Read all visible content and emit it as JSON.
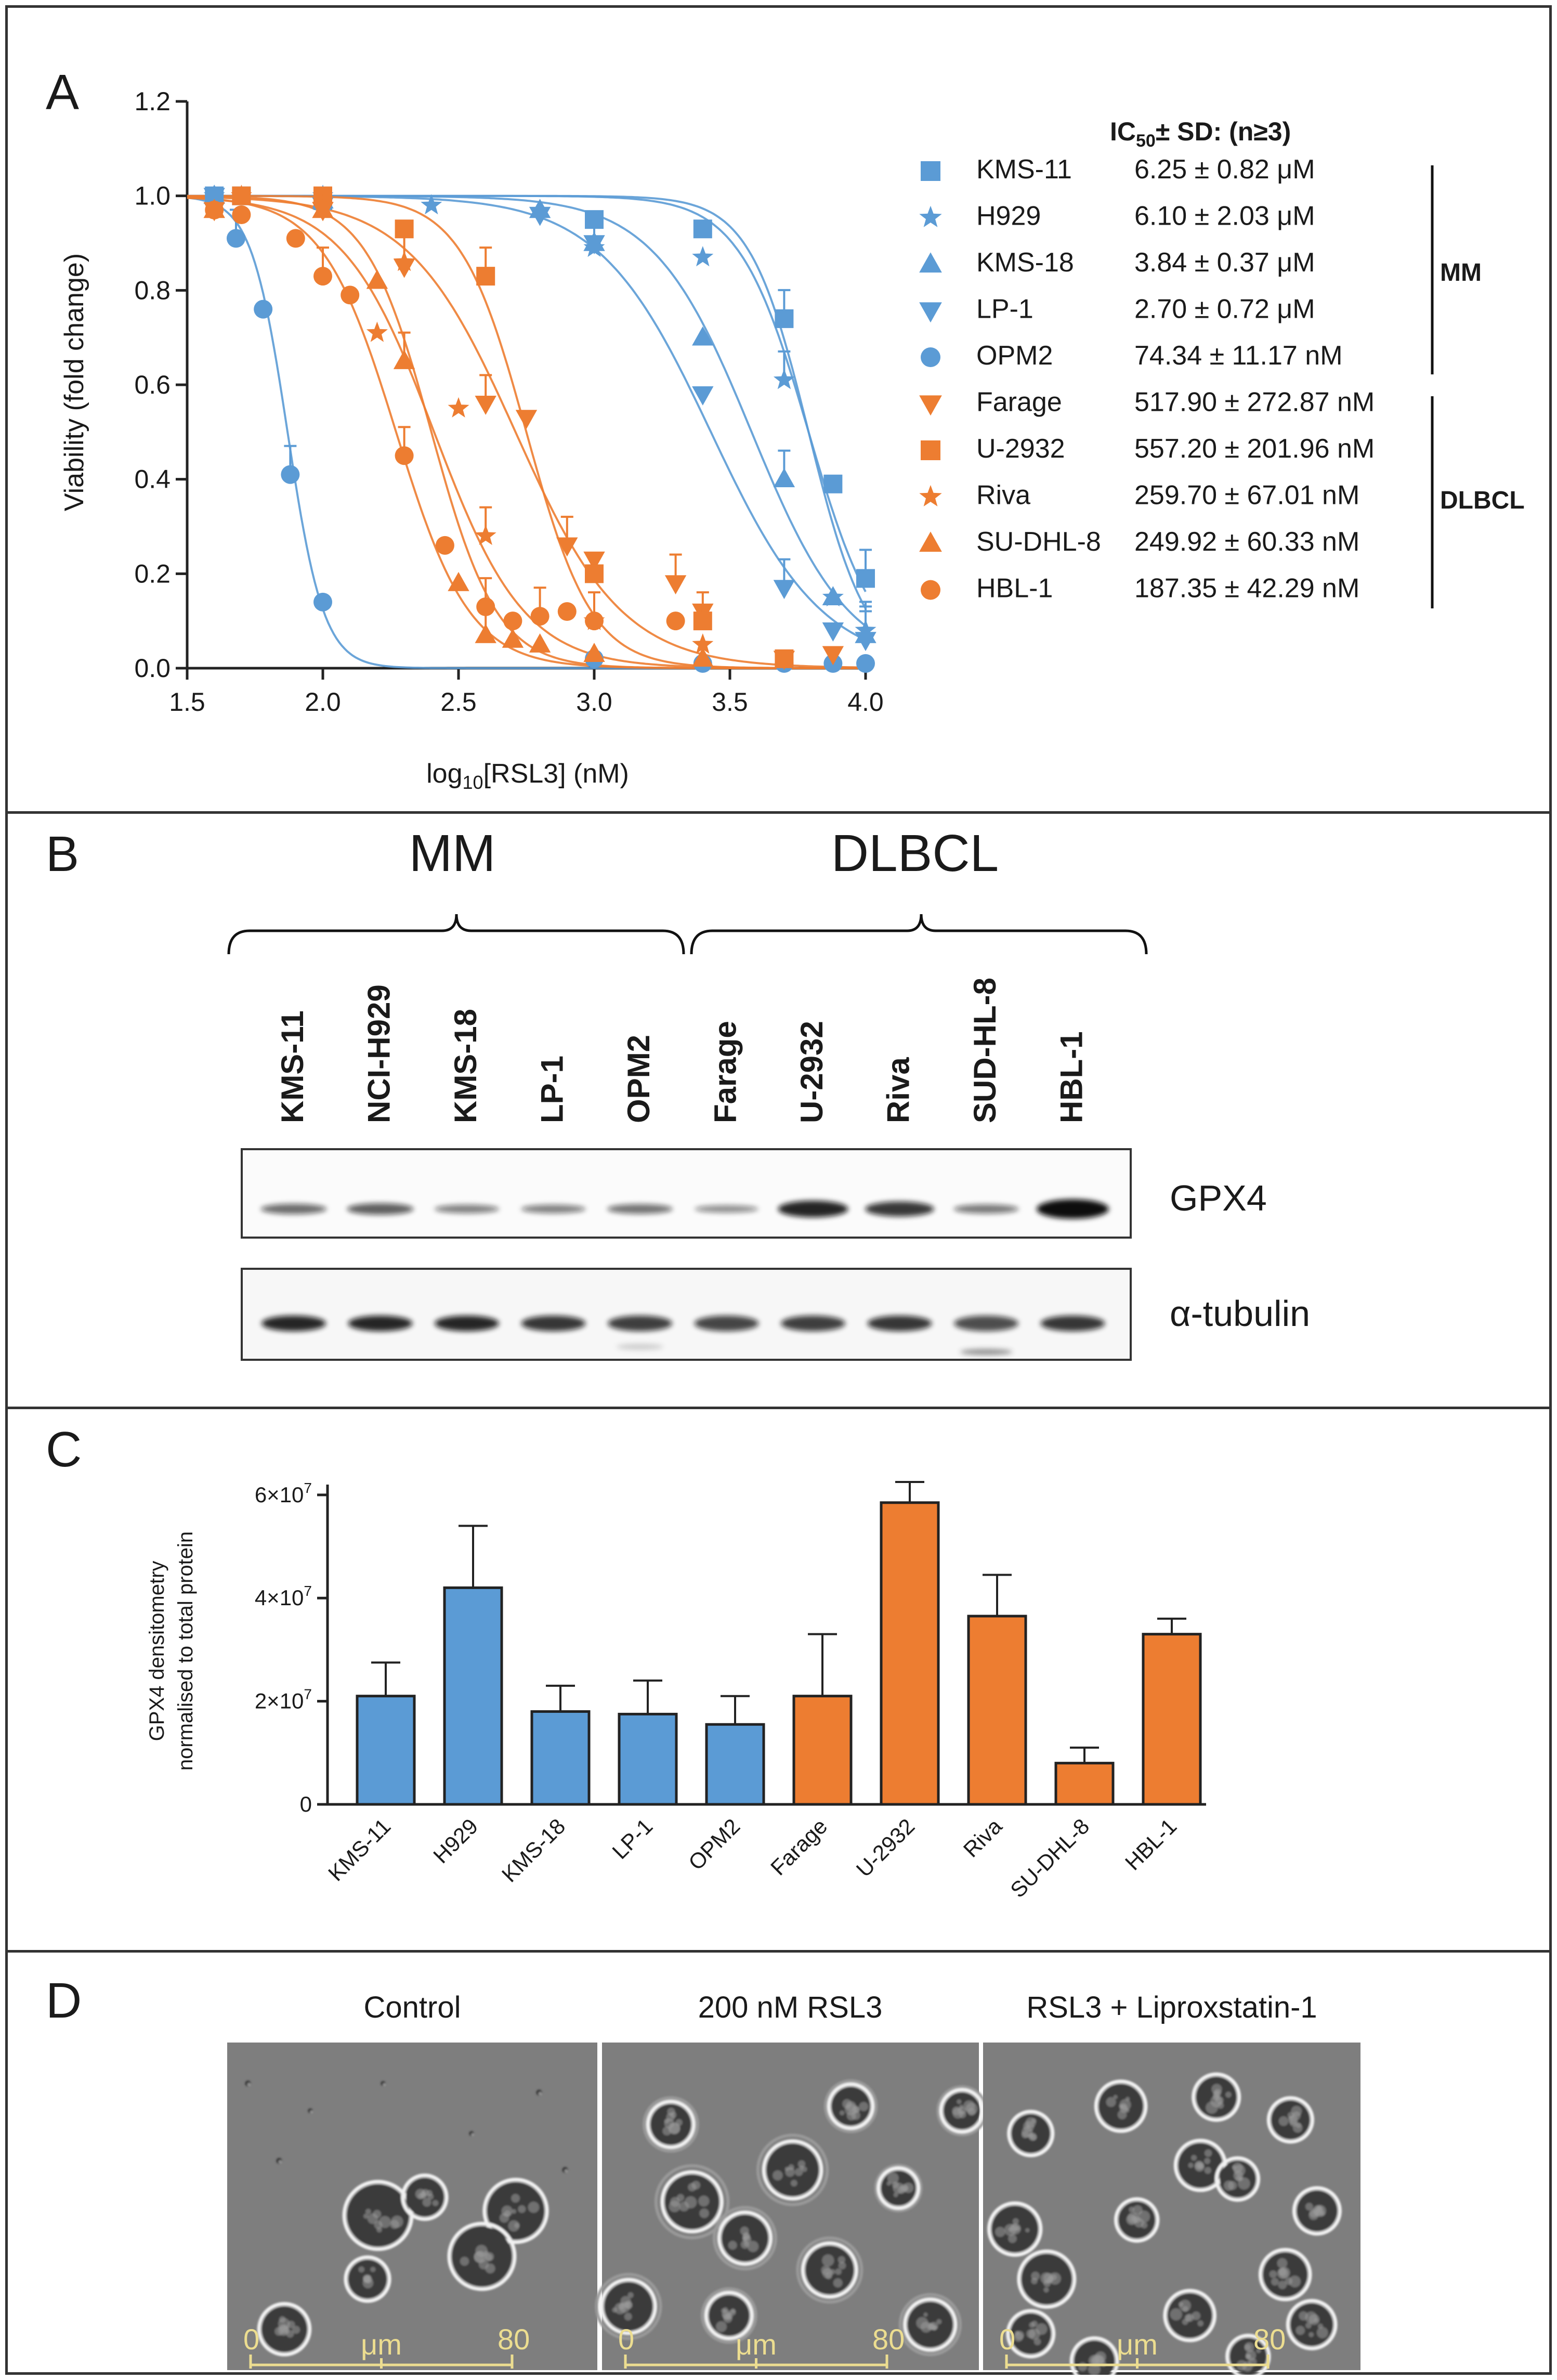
{
  "colors": {
    "mm": "#5B9BD5",
    "dlbcl": "#ED7D31",
    "frame": "#333333"
  },
  "panel_a": {
    "letter": "A",
    "chart_data": {
      "type": "scatter",
      "xlabel_main": "log",
      "xlabel_sub": "10",
      "xlabel_rest": "[RSL3] (nM)",
      "ylabel": "Viability (fold change)",
      "xlim": [
        1.5,
        4.0
      ],
      "ylim": [
        0.0,
        1.2
      ],
      "x_ticks": [
        "1.5",
        "2.0",
        "2.5",
        "3.0",
        "3.5",
        "4.0"
      ],
      "y_ticks": [
        "0.0",
        "0.2",
        "0.4",
        "0.6",
        "0.8",
        "1.0",
        "1.2"
      ],
      "legend_title": "IC",
      "legend_title_sub": "50",
      "legend_title_rest": "± SD: (n≥3)",
      "series": [
        {
          "name": "KMS-11",
          "ic50": "6.25 ± 0.82 μM",
          "group": "mm",
          "marker": "square",
          "log_ic50": 3.79,
          "hill": 4.0,
          "x": [
            1.6,
            1.7,
            2.0,
            3.0,
            3.4,
            3.7,
            3.88,
            4.0
          ],
          "y": [
            1.0,
            1.0,
            0.99,
            0.95,
            0.93,
            0.74,
            0.39,
            0.19
          ]
        },
        {
          "name": "H929",
          "ic50": "6.10 ± 2.03 μM",
          "group": "mm",
          "marker": "star",
          "log_ic50": 3.79,
          "hill": 3.4,
          "x": [
            1.6,
            2.0,
            2.4,
            3.0,
            3.4,
            3.7,
            3.88,
            4.0
          ],
          "y": [
            1.0,
            1.0,
            0.98,
            0.89,
            0.87,
            0.61,
            0.15,
            0.08
          ]
        },
        {
          "name": "KMS-18",
          "ic50": "3.84 ± 0.37 μM",
          "group": "mm",
          "marker": "triangle-up",
          "log_ic50": 3.58,
          "hill": 2.4,
          "x": [
            1.6,
            2.0,
            2.8,
            3.0,
            3.4,
            3.7,
            3.88,
            4.0
          ],
          "y": [
            1.0,
            0.99,
            0.97,
            0.9,
            0.7,
            0.4,
            0.15,
            0.07
          ]
        },
        {
          "name": "LP-1",
          "ic50": "2.70 ± 0.72 μM",
          "group": "mm",
          "marker": "triangle-down",
          "log_ic50": 3.43,
          "hill": 2.1,
          "x": [
            1.6,
            2.0,
            2.8,
            3.0,
            3.4,
            3.7,
            3.88,
            4.0
          ],
          "y": [
            1.0,
            0.98,
            0.96,
            0.9,
            0.58,
            0.17,
            0.08,
            0.06
          ]
        },
        {
          "name": "OPM2",
          "ic50": "74.34 ± 11.17 nM",
          "group": "mm",
          "marker": "circle",
          "log_ic50": 1.87,
          "hill": 6.5,
          "x": [
            1.6,
            1.68,
            1.78,
            1.88,
            2.0,
            3.0,
            3.4,
            3.7,
            3.88,
            4.0
          ],
          "y": [
            1.0,
            0.91,
            0.76,
            0.41,
            0.14,
            0.02,
            0.01,
            0.01,
            0.01,
            0.01
          ]
        },
        {
          "name": "Farage",
          "ic50": "517.90 ± 272.87 nM",
          "group": "dlbcl",
          "marker": "triangle-down",
          "log_ic50": 2.71,
          "hill": 2.2,
          "x": [
            1.6,
            2.0,
            2.3,
            2.6,
            2.75,
            2.9,
            3.0,
            3.3,
            3.4,
            3.7,
            3.88
          ],
          "y": [
            0.97,
            0.97,
            0.85,
            0.56,
            0.53,
            0.26,
            0.23,
            0.18,
            0.12,
            0.02,
            0.03
          ]
        },
        {
          "name": "U-2932",
          "ic50": "557.20 ± 201.96 nM",
          "group": "dlbcl",
          "marker": "square",
          "log_ic50": 2.75,
          "hill": 3.6,
          "x": [
            1.7,
            2.0,
            2.3,
            2.6,
            3.0,
            3.4,
            3.7
          ],
          "y": [
            1.0,
            1.0,
            0.93,
            0.83,
            0.2,
            0.1,
            0.02
          ]
        },
        {
          "name": "Riva",
          "ic50": "259.70 ± 67.01 nM",
          "group": "dlbcl",
          "marker": "star",
          "log_ic50": 2.41,
          "hill": 2.6,
          "x": [
            1.7,
            2.0,
            2.2,
            2.3,
            2.5,
            2.6,
            3.0,
            3.4
          ],
          "y": [
            1.0,
            0.98,
            0.71,
            0.86,
            0.55,
            0.28,
            0.1,
            0.05
          ]
        },
        {
          "name": "SU-DHL-8",
          "ic50": "249.92 ± 60.33 nM",
          "group": "dlbcl",
          "marker": "triangle-up",
          "log_ic50": 2.4,
          "hill": 3.6,
          "x": [
            1.6,
            2.0,
            2.2,
            2.3,
            2.5,
            2.6,
            2.7,
            2.8,
            3.0,
            3.4
          ],
          "y": [
            0.97,
            0.97,
            0.82,
            0.65,
            0.18,
            0.07,
            0.06,
            0.05,
            0.03,
            0.02
          ]
        },
        {
          "name": "HBL-1",
          "ic50": "187.35 ± 42.29 nM",
          "group": "dlbcl",
          "marker": "circle",
          "log_ic50": 2.27,
          "hill": 3.2,
          "x": [
            1.6,
            1.7,
            1.9,
            2.0,
            2.1,
            2.3,
            2.45,
            2.6,
            2.7,
            2.8,
            2.9,
            3.0,
            3.3
          ],
          "y": [
            0.97,
            0.96,
            0.91,
            0.83,
            0.79,
            0.45,
            0.26,
            0.13,
            0.1,
            0.11,
            0.12,
            0.1,
            0.1
          ]
        }
      ]
    },
    "group_labels": {
      "mm": "MM",
      "dlbcl": "DLBCL"
    }
  },
  "panel_b": {
    "letter": "B",
    "group_mm": "MM",
    "group_dlbcl": "DLBCL",
    "lanes": [
      "KMS-11",
      "NCI-H929",
      "KMS-18",
      "LP-1",
      "OPM2",
      "Farage",
      "U-2932",
      "Riva",
      "SUD-HL-8",
      "HBL-1"
    ],
    "gpx4_intensity": [
      0.45,
      0.55,
      0.3,
      0.3,
      0.4,
      0.2,
      1.0,
      0.85,
      0.35,
      1.25
    ],
    "tubulin_intensity": [
      0.85,
      0.85,
      0.85,
      0.75,
      0.7,
      0.65,
      0.7,
      0.75,
      0.6,
      0.75
    ],
    "blot_labels": {
      "gpx4": "GPX4",
      "tubulin": "α-tubulin"
    }
  },
  "panel_c": {
    "letter": "C",
    "chart_data": {
      "type": "bar",
      "ylabel_line1": "GPX4 densitometry",
      "ylabel_line2": "normalised to total protein",
      "ylim": [
        0,
        62000000.0
      ],
      "y_ticks": [
        {
          "value": 0,
          "base": "0",
          "exp": ""
        },
        {
          "value": 20000000.0,
          "base": "2×10",
          "exp": "7"
        },
        {
          "value": 40000000.0,
          "base": "4×10",
          "exp": "7"
        },
        {
          "value": 60000000.0,
          "base": "6×10",
          "exp": "7"
        }
      ],
      "categories": [
        "KMS-11",
        "H929",
        "KMS-18",
        "LP-1",
        "OPM2",
        "Farage",
        "U-2932",
        "Riva",
        "SU-DHL-8",
        "HBL-1"
      ],
      "values": [
        21000000.0,
        42000000.0,
        18000000.0,
        17500000.0,
        15500000.0,
        21000000.0,
        58500000.0,
        36500000.0,
        8000000.0,
        33000000.0
      ],
      "errors": [
        6500000.0,
        12000000.0,
        5000000.0,
        6500000.0,
        5500000.0,
        12000000.0,
        4000000.0,
        8000000.0,
        3000000.0,
        3000000.0
      ],
      "groups": [
        "mm",
        "mm",
        "mm",
        "mm",
        "mm",
        "dlbcl",
        "dlbcl",
        "dlbcl",
        "dlbcl",
        "dlbcl"
      ]
    }
  },
  "panel_d": {
    "letter": "D",
    "images": [
      {
        "title": "Control",
        "scale_start": "0",
        "scale_unit": "μm",
        "scale_end": "80"
      },
      {
        "title": "200 nM RSL3",
        "scale_start": "0",
        "scale_unit": "μm",
        "scale_end": "80"
      },
      {
        "title": "RSL3 + Liproxstatin-1",
        "scale_start": "0",
        "scale_unit": "μm",
        "scale_end": "80"
      }
    ]
  }
}
